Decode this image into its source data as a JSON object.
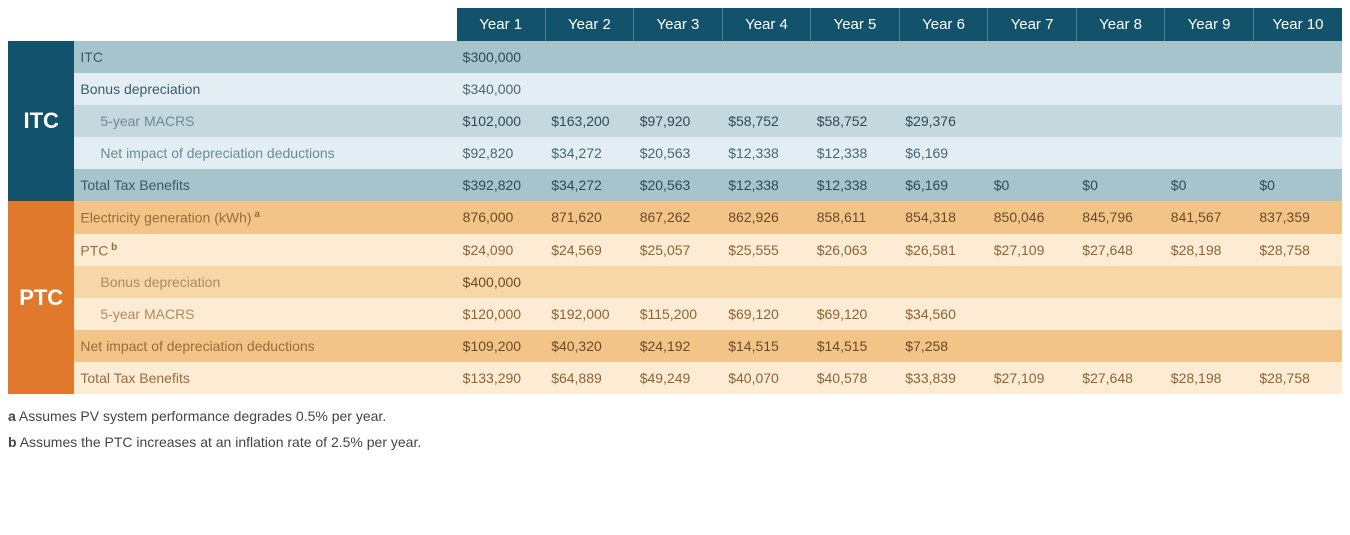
{
  "columns": [
    "Year 1",
    "Year 2",
    "Year 3",
    "Year 4",
    "Year 5",
    "Year 6",
    "Year 7",
    "Year 8",
    "Year 9",
    "Year 10"
  ],
  "sections": {
    "itc": {
      "label": "ITC",
      "rows": [
        {
          "label": "ITC",
          "style": "itc-dark",
          "indent": false,
          "values": [
            "$300,000",
            "",
            "",
            "",
            "",
            "",
            "",
            "",
            "",
            ""
          ]
        },
        {
          "label": "Bonus depreciation",
          "style": "itc-light",
          "indent": false,
          "values": [
            "$340,000",
            "",
            "",
            "",
            "",
            "",
            "",
            "",
            "",
            ""
          ]
        },
        {
          "label": "5-year MACRS",
          "style": "itc-mid",
          "indent": true,
          "values": [
            "$102,000",
            "$163,200",
            "$97,920",
            "$58,752",
            "$58,752",
            "$29,376",
            "",
            "",
            "",
            ""
          ]
        },
        {
          "label": "Net impact of depreciation deductions",
          "style": "itc-light",
          "indent": true,
          "values": [
            "$92,820",
            "$34,272",
            "$20,563",
            "$12,338",
            "$12,338",
            "$6,169",
            "",
            "",
            "",
            ""
          ]
        },
        {
          "label": "Total Tax Benefits",
          "style": "itc-dark",
          "indent": false,
          "values": [
            "$392,820",
            "$34,272",
            "$20,563",
            "$12,338",
            "$12,338",
            "$6,169",
            "$0",
            "$0",
            "$0",
            "$0"
          ]
        }
      ]
    },
    "ptc": {
      "label": "PTC",
      "rows": [
        {
          "label": "Electricity generation (kWh)",
          "sup": "a",
          "style": "ptc-dark",
          "indent": false,
          "values": [
            "876,000",
            "871,620",
            "867,262",
            "862,926",
            "858,611",
            "854,318",
            "850,046",
            "845,796",
            "841,567",
            "837,359"
          ]
        },
        {
          "label": "PTC",
          "sup": "b",
          "style": "ptc-light",
          "indent": false,
          "values": [
            "$24,090",
            "$24,569",
            "$25,057",
            "$25,555",
            "$26,063",
            "$26,581",
            "$27,109",
            "$27,648",
            "$28,198",
            "$28,758"
          ]
        },
        {
          "label": "Bonus depreciation",
          "style": "ptc-mid",
          "indent": true,
          "values": [
            "$400,000",
            "",
            "",
            "",
            "",
            "",
            "",
            "",
            "",
            ""
          ]
        },
        {
          "label": "5-year MACRS",
          "style": "ptc-light",
          "indent": true,
          "values": [
            "$120,000",
            "$192,000",
            "$115,200",
            "$69,120",
            "$69,120",
            "$34,560",
            "",
            "",
            "",
            ""
          ]
        },
        {
          "label": "Net impact of depreciation deductions",
          "style": "ptc-dark",
          "indent": false,
          "values": [
            "$109,200",
            "$40,320",
            "$24,192",
            "$14,515",
            "$14,515",
            "$7,258",
            "",
            "",
            "",
            ""
          ]
        },
        {
          "label": "Total Tax Benefits",
          "style": "ptc-light",
          "indent": false,
          "values": [
            "$133,290",
            "$64,889",
            "$49,249",
            "$40,070",
            "$40,578",
            "$33,839",
            "$27,109",
            "$27,648",
            "$28,198",
            "$28,758"
          ]
        }
      ]
    }
  },
  "footnotes": [
    {
      "key": "a",
      "text": "Assumes PV system performance degrades 0.5% per year."
    },
    {
      "key": "b",
      "text": "Assumes the PTC increases at an inflation rate of 2.5% per year."
    }
  ],
  "colwidths": {
    "sectionLabel": 66,
    "rowLabel": 380,
    "year": 88
  }
}
